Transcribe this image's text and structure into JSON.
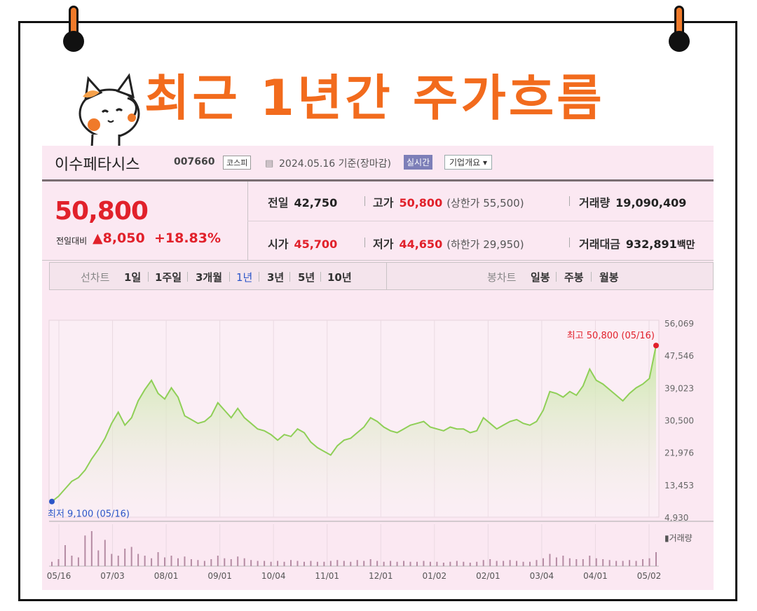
{
  "headline": "최근 1년간 주가흐름",
  "stock": {
    "name": "이수페타시스",
    "code": "007660",
    "market": "코스피",
    "date": "2024.05.16",
    "date_suffix": "기준(장마감)",
    "live_label": "실시간",
    "company_label": "기업개요 ▾",
    "price": "50,800",
    "diff_label": "전일대비",
    "diff_value": "▲8,050",
    "diff_percent": "+18.83%",
    "prev_label": "전일",
    "prev_value": "42,750",
    "high_label": "고가",
    "high_value": "50,800",
    "upper_label": "(상한가 55,500)",
    "volume_label": "거래량",
    "volume_value": "19,090,409",
    "open_label": "시가",
    "open_value": "45,700",
    "low_label": "저가",
    "low_value": "44,650",
    "lower_label": "(하한가 29,950)",
    "amount_label": "거래대금",
    "amount_value": "932,891",
    "amount_unit": "백만"
  },
  "tabs": {
    "line_label": "선차트",
    "line": [
      "1일",
      "1주일",
      "3개월",
      "1년",
      "3년",
      "5년",
      "10년"
    ],
    "active": "1년",
    "candle_label": "봉차트",
    "candle": [
      "일봉",
      "주봉",
      "월봉"
    ]
  },
  "colors": {
    "up": "#e1212b",
    "line": "#8fcf57",
    "fill_top": "#c7e8a3",
    "low": "#2b55c8",
    "accent": "#f26b1d"
  },
  "chart_data": {
    "type": "area",
    "title": "",
    "xlabel": "",
    "ylabel": "",
    "ylim": [
      4930,
      56069
    ],
    "yticks": [
      "56,069",
      "47,546",
      "39,023",
      "30,500",
      "21,976",
      "13,453",
      "4,930"
    ],
    "xticks": [
      "05/16",
      "07/03",
      "08/01",
      "09/01",
      "10/04",
      "11/01",
      "12/01",
      "01/02",
      "02/01",
      "03/04",
      "04/01",
      "05/02"
    ],
    "high_annotation": "최고 50,800 (05/16)",
    "low_annotation": "최저 9,100 (05/16)",
    "volume_label": "▮거래량",
    "grid": true,
    "series": [
      {
        "name": "",
        "values": [
          9100,
          10500,
          12500,
          14500,
          15500,
          17500,
          20500,
          23000,
          26000,
          30000,
          33000,
          29500,
          31500,
          36000,
          39000,
          41500,
          38000,
          36500,
          39500,
          37000,
          32000,
          31000,
          30000,
          30500,
          32000,
          35500,
          33500,
          31500,
          34000,
          31500,
          30000,
          28500,
          28000,
          27000,
          25500,
          27000,
          26500,
          28500,
          27500,
          25000,
          23500,
          22500,
          21500,
          24000,
          25500,
          26000,
          27500,
          29000,
          31500,
          30500,
          29000,
          28000,
          27500,
          28500,
          29500,
          30000,
          30500,
          29000,
          28500,
          28000,
          29000,
          28500,
          28500,
          27500,
          28000,
          31500,
          30000,
          28500,
          29500,
          30500,
          31000,
          30000,
          29500,
          30500,
          33500,
          38500,
          38000,
          37000,
          38500,
          37500,
          40000,
          44500,
          41500,
          40500,
          39000,
          37500,
          36000,
          38000,
          39500,
          40500,
          42000,
          50800
        ]
      }
    ],
    "volume": [
      5,
      8,
      24,
      12,
      10,
      35,
      40,
      18,
      30,
      14,
      12,
      20,
      22,
      14,
      12,
      9,
      16,
      10,
      12,
      9,
      11,
      8,
      7,
      6,
      8,
      12,
      9,
      8,
      11,
      9,
      7,
      6,
      6,
      5,
      6,
      5,
      7,
      6,
      5,
      6,
      5,
      5,
      6,
      7,
      6,
      5,
      7,
      6,
      8,
      6,
      5,
      6,
      5,
      6,
      5,
      5,
      6,
      5,
      5,
      4,
      5,
      6,
      5,
      4,
      5,
      7,
      8,
      6,
      6,
      7,
      6,
      5,
      5,
      7,
      9,
      14,
      10,
      12,
      9,
      8,
      8,
      12,
      9,
      8,
      7,
      6,
      6,
      7,
      6,
      8,
      9,
      16
    ]
  }
}
